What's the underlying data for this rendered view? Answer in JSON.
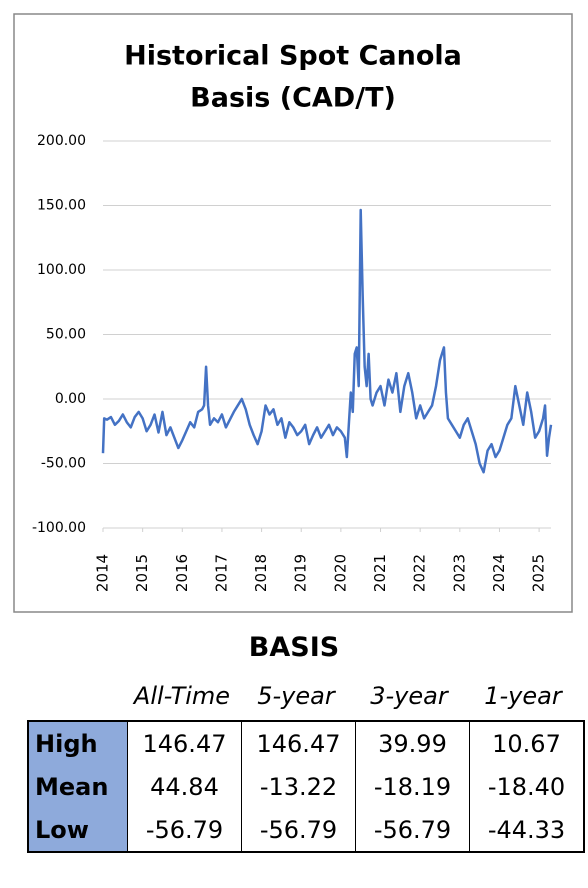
{
  "chart_data": {
    "type": "line",
    "title": [
      "Historical Spot Canola",
      "Basis (CAD/T)"
    ],
    "x": [
      2014.0,
      2014.03,
      2014.1,
      2014.2,
      2014.3,
      2014.4,
      2014.5,
      2014.6,
      2014.7,
      2014.8,
      2014.9,
      2015.0,
      2015.1,
      2015.2,
      2015.3,
      2015.4,
      2015.5,
      2015.6,
      2015.7,
      2015.8,
      2015.9,
      2016.0,
      2016.1,
      2016.2,
      2016.3,
      2016.4,
      2016.5,
      2016.55,
      2016.6,
      2016.65,
      2016.7,
      2016.8,
      2016.9,
      2017.0,
      2017.1,
      2017.2,
      2017.3,
      2017.4,
      2017.5,
      2017.6,
      2017.7,
      2017.8,
      2017.9,
      2018.0,
      2018.1,
      2018.2,
      2018.3,
      2018.4,
      2018.5,
      2018.6,
      2018.7,
      2018.8,
      2018.9,
      2019.0,
      2019.1,
      2019.2,
      2019.3,
      2019.4,
      2019.5,
      2019.6,
      2019.7,
      2019.8,
      2019.9,
      2020.0,
      2020.1,
      2020.15,
      2020.2,
      2020.25,
      2020.3,
      2020.35,
      2020.4,
      2020.45,
      2020.5,
      2020.55,
      2020.6,
      2020.65,
      2020.7,
      2020.75,
      2020.8,
      2020.9,
      2021.0,
      2021.1,
      2021.2,
      2021.3,
      2021.4,
      2021.5,
      2021.6,
      2021.7,
      2021.8,
      2021.9,
      2022.0,
      2022.1,
      2022.2,
      2022.3,
      2022.4,
      2022.5,
      2022.6,
      2022.65,
      2022.7,
      2022.8,
      2022.9,
      2023.0,
      2023.1,
      2023.2,
      2023.3,
      2023.4,
      2023.5,
      2023.6,
      2023.7,
      2023.8,
      2023.9,
      2024.0,
      2024.1,
      2024.2,
      2024.3,
      2024.4,
      2024.5,
      2024.6,
      2024.7,
      2024.8,
      2024.9,
      2025.0,
      2025.1,
      2025.15,
      2025.2,
      2025.25,
      2025.3
    ],
    "series": [
      {
        "color": "#4472c4",
        "values": [
          -42,
          -15,
          -16,
          -14,
          -20,
          -17,
          -12,
          -18,
          -22,
          -14,
          -10,
          -15,
          -25,
          -20,
          -12,
          -26,
          -10,
          -28,
          -22,
          -30,
          -38,
          -32,
          -25,
          -18,
          -22,
          -10,
          -8,
          -5,
          25,
          -5,
          -20,
          -15,
          -18,
          -12,
          -22,
          -16,
          -10,
          -5,
          0,
          -8,
          -20,
          -28,
          -35,
          -25,
          -5,
          -12,
          -8,
          -20,
          -15,
          -30,
          -18,
          -22,
          -28,
          -25,
          -20,
          -35,
          -28,
          -22,
          -30,
          -25,
          -20,
          -28,
          -22,
          -25,
          -30,
          -45,
          -20,
          5,
          -10,
          35,
          40,
          10,
          146.47,
          80,
          25,
          10,
          35,
          0,
          -5,
          5,
          10,
          -5,
          15,
          5,
          20,
          -10,
          10,
          20,
          5,
          -15,
          -5,
          -15,
          -10,
          -5,
          10,
          30,
          39.99,
          5,
          -15,
          -20,
          -25,
          -30,
          -20,
          -15,
          -25,
          -35,
          -50,
          -56.79,
          -40,
          -35,
          -45,
          -40,
          -30,
          -20,
          -15,
          10,
          -5,
          -20,
          5,
          -10,
          -30,
          -25,
          -15,
          -5,
          -44,
          -30,
          -20
        ]
      }
    ],
    "xlim": [
      2014,
      2025.3
    ],
    "xticks": [
      2014,
      2015,
      2016,
      2017,
      2018,
      2019,
      2020,
      2021,
      2022,
      2023,
      2024,
      2025
    ],
    "ylim": [
      -100,
      200
    ],
    "yticks": [
      {
        "value": -100,
        "label": "-100.00"
      },
      {
        "value": -50,
        "label": "-50.00"
      },
      {
        "value": 0,
        "label": "0.00"
      },
      {
        "value": 50,
        "label": "50.00"
      },
      {
        "value": 100,
        "label": "100.00"
      },
      {
        "value": 150,
        "label": "150.00"
      },
      {
        "value": 200,
        "label": "200.00"
      }
    ],
    "grid": true
  },
  "table": {
    "title": "BASIS",
    "columns": [
      "All-Time",
      "5-year",
      "3-year",
      "1-year"
    ],
    "rows": [
      {
        "label": "High",
        "values": [
          "146.47",
          "146.47",
          "39.99",
          "10.67"
        ]
      },
      {
        "label": "Mean",
        "values": [
          "44.84",
          "-13.22",
          "-18.19",
          "-18.40"
        ]
      },
      {
        "label": "Low",
        "values": [
          "-56.79",
          "-56.79",
          "-56.79",
          "-44.33"
        ]
      }
    ]
  }
}
